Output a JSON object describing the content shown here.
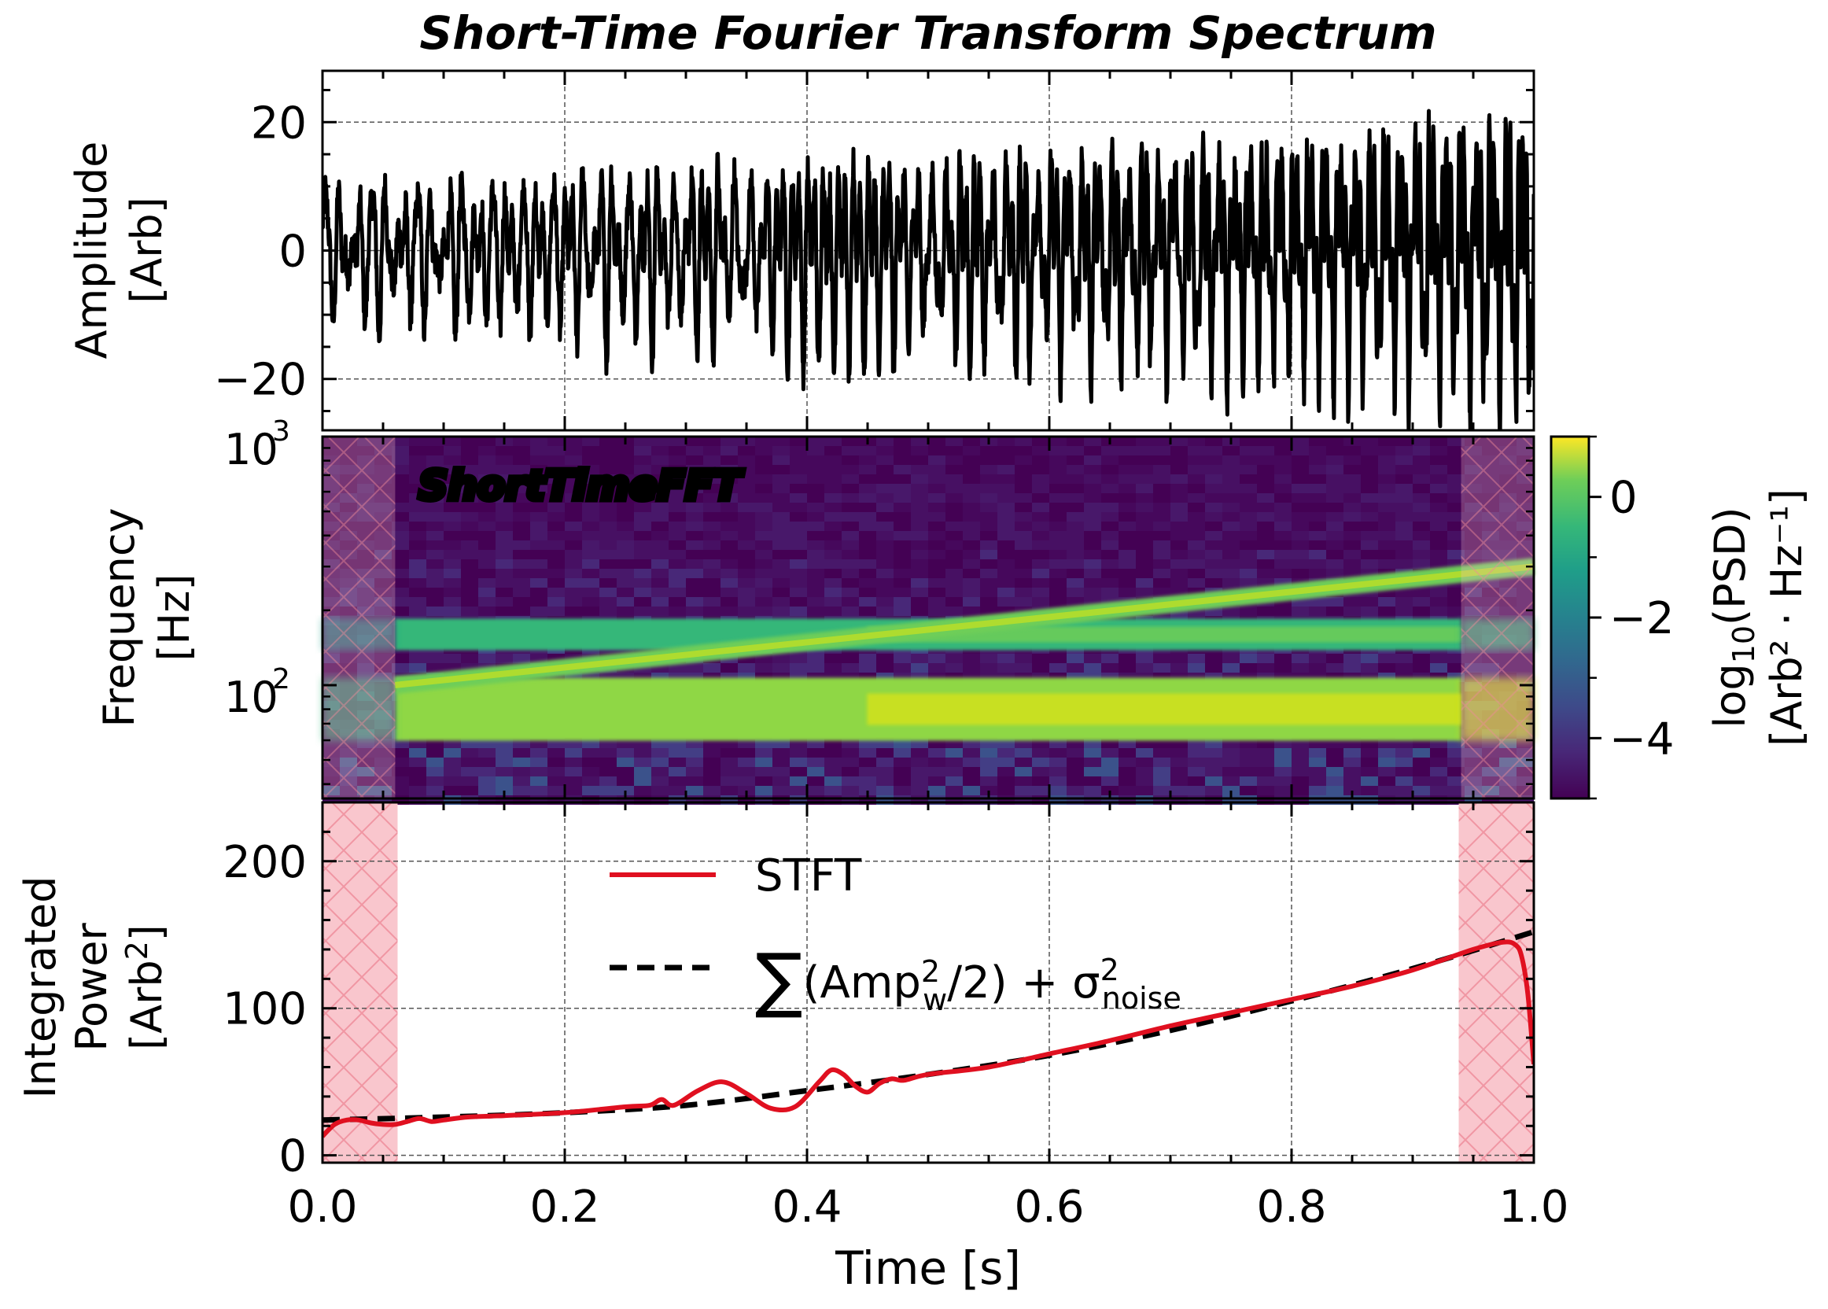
{
  "chart_data": [
    {
      "type": "line",
      "title": "Short-Time Fourier Transform Spectrum",
      "xlabel": "",
      "ylabel": [
        "Amplitude",
        "[Arb]"
      ],
      "xlim": [
        0.0,
        1.0
      ],
      "ylim": [
        -28,
        28
      ],
      "yticks": [
        -20,
        0,
        20
      ],
      "ytick_labels": [
        "−20",
        "0",
        "20"
      ],
      "grid": true,
      "series": [
        {
          "color": "#000000",
          "description": "amplitude oscillation envelope",
          "envelope_x": [
            0.0,
            0.1,
            0.2,
            0.3,
            0.4,
            0.5,
            0.6,
            0.7,
            0.8,
            0.9,
            1.0
          ],
          "envelope_amplitude": [
            11,
            11,
            13,
            14,
            15,
            16,
            17,
            18,
            19,
            21,
            24
          ]
        }
      ]
    },
    {
      "type": "heatmap",
      "annotation": "ShortTimeFFT",
      "ylabel": [
        "Frequency",
        "[Hz]"
      ],
      "yscale": "log",
      "ylim": [
        35,
        1000
      ],
      "ytick_labels": [
        {
          "base": "10",
          "exp": "2",
          "value": 100
        },
        {
          "base": "10",
          "exp": "3",
          "value": 1000
        }
      ],
      "colormap": "viridis",
      "colorbar": {
        "label_line1": "log",
        "label_sub": "10",
        "label_rest": "(PSD)",
        "label_line2": "[Arb² · Hz⁻¹]",
        "range": [
          -5,
          1
        ],
        "ticks": [
          0,
          -2,
          -4
        ],
        "tick_labels": [
          "0",
          "−2",
          "−4"
        ]
      },
      "components": [
        {
          "kind": "constant",
          "freq_hz": 80,
          "log10_psd": 0.3
        },
        {
          "kind": "constant",
          "freq_hz": 160,
          "log10_psd": -0.8
        },
        {
          "kind": "chirp",
          "freq_start_hz": 100,
          "freq_end_hz": 300,
          "log10_psd": -0.3
        }
      ],
      "shaded_edges": [
        [
          0.0,
          0.06
        ],
        [
          0.94,
          1.0
        ]
      ]
    },
    {
      "type": "line",
      "ylabel": [
        "Integrated",
        "Power",
        "[Arb²]"
      ],
      "xlabel": "Time [s]",
      "xlim": [
        0.0,
        1.0
      ],
      "ylim": [
        -5,
        240
      ],
      "xticks": [
        0.0,
        0.2,
        0.4,
        0.6,
        0.8,
        1.0
      ],
      "xtick_labels": [
        "0.0",
        "0.2",
        "0.4",
        "0.6",
        "0.8",
        "1.0"
      ],
      "yticks": [
        0,
        100,
        200
      ],
      "ytick_labels": [
        "0",
        "100",
        "200"
      ],
      "grid": true,
      "legend_position": "upper-center",
      "shaded_edges": [
        [
          0.0,
          0.062
        ],
        [
          0.938,
          1.0
        ]
      ],
      "series": [
        {
          "name": "STFT",
          "color": "#e01020",
          "style": "solid",
          "x": [
            0.0,
            0.01,
            0.02,
            0.03,
            0.04,
            0.05,
            0.06,
            0.07,
            0.08,
            0.09,
            0.1,
            0.12,
            0.15,
            0.2,
            0.25,
            0.27,
            0.28,
            0.29,
            0.31,
            0.33,
            0.35,
            0.37,
            0.39,
            0.41,
            0.42,
            0.43,
            0.44,
            0.45,
            0.46,
            0.47,
            0.48,
            0.5,
            0.55,
            0.6,
            0.65,
            0.7,
            0.75,
            0.8,
            0.85,
            0.9,
            0.95,
            0.975,
            0.985,
            0.99,
            0.995,
            1.0
          ],
          "y": [
            13,
            21,
            24,
            24,
            22,
            21,
            21,
            23,
            25,
            23,
            24,
            26,
            27,
            29,
            33,
            34,
            38,
            34,
            44,
            50,
            42,
            32,
            33,
            50,
            58,
            55,
            47,
            43,
            49,
            52,
            51,
            55,
            60,
            69,
            78,
            88,
            97,
            106,
            115,
            126,
            140,
            145,
            143,
            135,
            110,
            62
          ]
        },
        {
          "name": "∑(Amp_w²/2) + σ_noise²",
          "color": "#000000",
          "style": "dashed",
          "x": [
            0.0,
            0.1,
            0.2,
            0.3,
            0.4,
            0.5,
            0.6,
            0.7,
            0.8,
            0.9,
            1.0
          ],
          "y": [
            24,
            26,
            29,
            34,
            44,
            55,
            68,
            85,
            105,
            127,
            152
          ]
        }
      ]
    }
  ]
}
